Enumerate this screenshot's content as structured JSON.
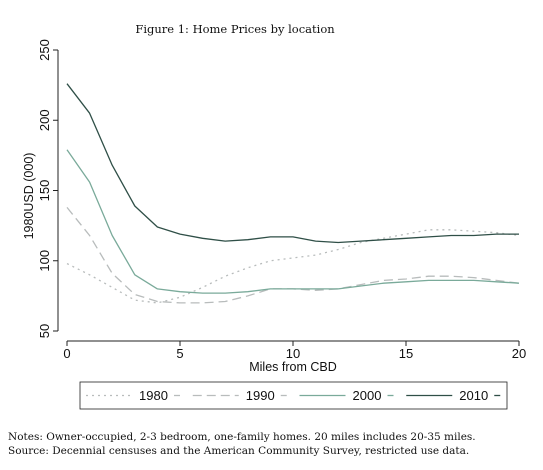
{
  "figure": {
    "title": "Figure 1: Home Prices by location",
    "notes": "Notes: Owner-occupied, 2-3 bedroom, one-family homes. 20 miles includes 20-35 miles.",
    "source": "Source: Decennial censuses and the American Community Survey, restricted use data."
  },
  "chart_data": {
    "type": "line",
    "title": "Figure 1: Home Prices by location",
    "xlabel": "Miles from CBD",
    "ylabel": "1980USD (000)",
    "xlim": [
      0,
      20
    ],
    "ylim": [
      50,
      250
    ],
    "xticks": [
      0,
      5,
      10,
      15,
      20
    ],
    "yticks": [
      50,
      100,
      150,
      200,
      250
    ],
    "grid": false,
    "legend_position": "bottom",
    "x": [
      0,
      1,
      2,
      3,
      4,
      5,
      6,
      7,
      8,
      9,
      10,
      11,
      12,
      13,
      14,
      15,
      16,
      17,
      18,
      19,
      20
    ],
    "series": [
      {
        "name": "1980",
        "style": "dotted",
        "color": "#b8bcbc",
        "values": [
          98,
          90,
          81,
          72,
          70,
          74,
          81,
          89,
          95,
          100,
          102,
          104,
          108,
          113,
          116,
          119,
          122,
          122,
          121,
          120,
          118
        ]
      },
      {
        "name": "1990",
        "style": "dashed",
        "color": "#b8bcbc",
        "values": [
          138,
          118,
          91,
          76,
          71,
          70,
          70,
          71,
          75,
          80,
          80,
          79,
          80,
          83,
          86,
          87,
          89,
          89,
          88,
          86,
          84
        ]
      },
      {
        "name": "2000",
        "style": "solid",
        "color": "#7aaa9a",
        "values": [
          179,
          156,
          118,
          90,
          80,
          78,
          77,
          77,
          78,
          80,
          80,
          80,
          80,
          82,
          84,
          85,
          86,
          86,
          86,
          85,
          84
        ]
      },
      {
        "name": "2010",
        "style": "solid",
        "color": "#2f4f47",
        "values": [
          226,
          205,
          168,
          139,
          124,
          119,
          116,
          114,
          115,
          117,
          117,
          114,
          113,
          114,
          115,
          116,
          117,
          118,
          118,
          119,
          119
        ]
      }
    ]
  }
}
